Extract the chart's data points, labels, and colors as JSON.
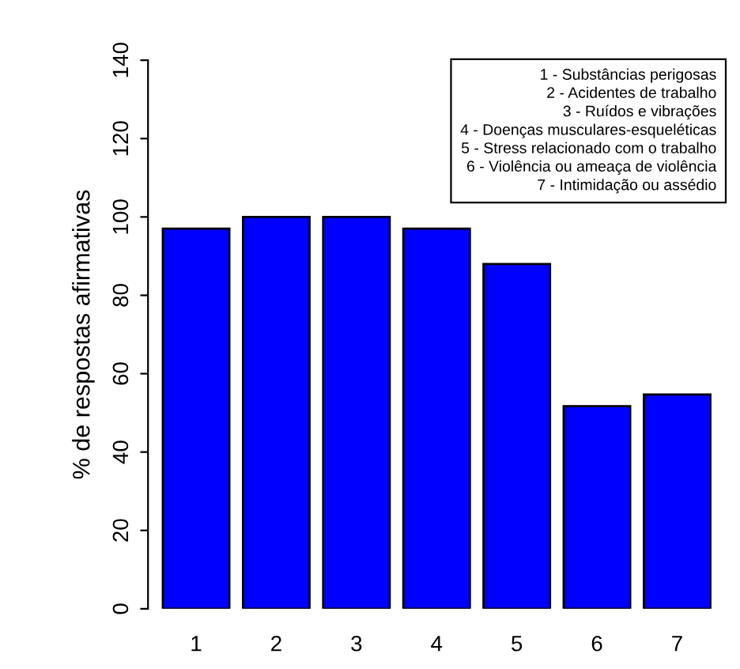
{
  "chart_data": {
    "type": "bar",
    "ylabel": "% de respostas afirmativas",
    "categories": [
      "1",
      "2",
      "3",
      "4",
      "5",
      "6",
      "7"
    ],
    "values": [
      97,
      100,
      100,
      97,
      88,
      51.7,
      54.7
    ],
    "color": "#0000ff",
    "ylim": [
      0,
      140
    ],
    "yticks": [
      0,
      20,
      40,
      60,
      80,
      100,
      120,
      140
    ],
    "grid": false,
    "legend": false,
    "annotations": [
      "1 - Substâncias perigosas",
      "2 - Acidentes de trabalho",
      "3 - Ruídos e vibrações",
      "4 - Doenças musculares-esqueléticas",
      "5 - Stress relacionado com o trabalho",
      "6 - Violência ou ameaça de violência",
      "7 - Intimidação ou assédio"
    ]
  }
}
